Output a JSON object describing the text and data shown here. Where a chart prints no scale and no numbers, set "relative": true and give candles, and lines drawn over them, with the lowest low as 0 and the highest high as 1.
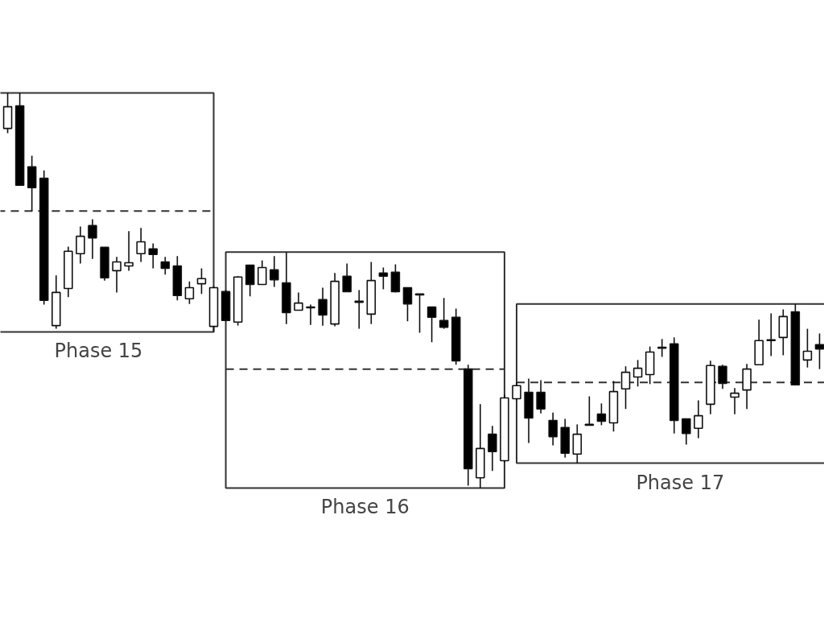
{
  "chart_data": {
    "type": "candlestick",
    "relative": true,
    "grid": false,
    "categories": [
      null,
      null,
      null,
      null,
      null,
      null,
      null,
      null,
      null,
      null,
      null,
      null,
      null,
      null,
      null,
      null,
      null,
      null,
      null,
      null,
      null,
      null,
      null,
      null,
      null,
      null,
      null,
      null,
      null,
      null,
      null,
      null,
      null,
      null,
      null,
      null,
      null,
      null,
      null,
      null,
      null,
      null,
      null,
      null,
      null,
      null,
      null,
      null,
      null,
      null,
      null,
      null,
      null,
      null,
      null,
      null,
      null,
      null,
      null,
      null,
      null,
      null,
      null,
      null,
      null,
      null,
      null,
      null
    ],
    "ohlc": [
      [
        0.91,
        1,
        0.898,
        0.965
      ],
      [
        0.967,
        1,
        0.766,
        0.766
      ],
      [
        0.813,
        0.841,
        0.701,
        0.76
      ],
      [
        0.784,
        0.804,
        0.464,
        0.475
      ],
      [
        0.411,
        0.538,
        0.403,
        0.495
      ],
      [
        0.505,
        0.611,
        0.483,
        0.599
      ],
      [
        0.593,
        0.662,
        0.568,
        0.637
      ],
      [
        0.664,
        0.68,
        0.58,
        0.633
      ],
      [
        0.609,
        0.609,
        0.525,
        0.532
      ],
      [
        0.55,
        0.585,
        0.495,
        0.572
      ],
      [
        0.562,
        0.65,
        0.55,
        0.57
      ],
      [
        0.593,
        0.658,
        0.572,
        0.623
      ],
      [
        0.605,
        0.619,
        0.556,
        0.591
      ],
      [
        0.572,
        0.585,
        0.54,
        0.556
      ],
      [
        0.562,
        0.587,
        0.475,
        0.487
      ],
      [
        0.479,
        0.523,
        0.466,
        0.507
      ],
      [
        0.517,
        0.556,
        0.491,
        0.53
      ],
      [
        0.409,
        0.511,
        0.395,
        0.507
      ],
      [
        0.497,
        0.501,
        0.422,
        0.424
      ],
      [
        0.42,
        0.536,
        0.411,
        0.534
      ],
      [
        0.564,
        0.564,
        0.485,
        0.515
      ],
      [
        0.515,
        0.576,
        0.515,
        0.558
      ],
      [
        0.552,
        0.587,
        0.509,
        0.527
      ],
      [
        0.519,
        0.597,
        0.415,
        0.444
      ],
      [
        0.45,
        0.495,
        0.45,
        0.468
      ],
      [
        0.458,
        0.464,
        0.413,
        0.456
      ],
      [
        0.477,
        0.507,
        0.411,
        0.438
      ],
      [
        0.415,
        0.544,
        0.409,
        0.523
      ],
      [
        0.536,
        0.568,
        0.497,
        0.497
      ],
      [
        0.473,
        0.501,
        0.403,
        0.47
      ],
      [
        0.44,
        0.572,
        0.415,
        0.525
      ],
      [
        0.544,
        0.558,
        0.503,
        0.536
      ],
      [
        0.546,
        0.566,
        0.495,
        0.497
      ],
      [
        0.507,
        0.507,
        0.422,
        0.466
      ],
      [
        0.491,
        0.491,
        0.393,
        0.489
      ],
      [
        0.458,
        0.458,
        0.369,
        0.432
      ],
      [
        0.424,
        0.481,
        0.403,
        0.407
      ],
      [
        0.432,
        0.454,
        0.312,
        0.322
      ],
      [
        0.301,
        0.312,
        0.006,
        0.049
      ],
      [
        0.026,
        0.212,
        0,
        0.1
      ],
      [
        0.136,
        0.157,
        0.043,
        0.092
      ],
      [
        0.069,
        0.236,
        0.065,
        0.228
      ],
      [
        0.226,
        0.267,
        0.222,
        0.259
      ],
      [
        0.242,
        0.277,
        0.114,
        0.177
      ],
      [
        0.242,
        0.273,
        0.189,
        0.2
      ],
      [
        0.171,
        0.191,
        0.108,
        0.13
      ],
      [
        0.153,
        0.175,
        0.077,
        0.088
      ],
      [
        0.086,
        0.161,
        0.063,
        0.136
      ],
      [
        0.159,
        0.232,
        0.159,
        0.161
      ],
      [
        0.187,
        0.214,
        0.159,
        0.169
      ],
      [
        0.165,
        0.271,
        0.143,
        0.244
      ],
      [
        0.251,
        0.308,
        0.2,
        0.293
      ],
      [
        0.281,
        0.324,
        0.257,
        0.303
      ],
      [
        0.287,
        0.358,
        0.263,
        0.344
      ],
      [
        0.354,
        0.377,
        0.332,
        0.356
      ],
      [
        0.365,
        0.381,
        0.138,
        0.171
      ],
      [
        0.175,
        0.175,
        0.11,
        0.138
      ],
      [
        0.151,
        0.222,
        0.126,
        0.183
      ],
      [
        0.212,
        0.322,
        0.187,
        0.31
      ],
      [
        0.308,
        0.312,
        0.251,
        0.265
      ],
      [
        0.23,
        0.253,
        0.187,
        0.24
      ],
      [
        0.248,
        0.314,
        0.2,
        0.301
      ],
      [
        0.312,
        0.426,
        0.312,
        0.373
      ],
      [
        0.373,
        0.442,
        0.334,
        0.375
      ],
      [
        0.381,
        0.452,
        0.336,
        0.434
      ],
      [
        0.446,
        0.466,
        0.261,
        0.261
      ],
      [
        0.324,
        0.403,
        0.305,
        0.346
      ],
      [
        0.363,
        0.391,
        0.301,
        0.352
      ]
    ],
    "annotations": [
      "Phase 15",
      "Phase 16",
      "Phase 17"
    ],
    "ref_lines": [
      {
        "axis": "y",
        "value": 0.701,
        "color": "#333333",
        "line_style": "dashed"
      },
      {
        "axis": "y",
        "value": 0.301,
        "color": "#333333",
        "line_style": "dashed"
      },
      {
        "axis": "y",
        "value": 0.267,
        "color": "#333333",
        "line_style": "dashed"
      }
    ]
  }
}
